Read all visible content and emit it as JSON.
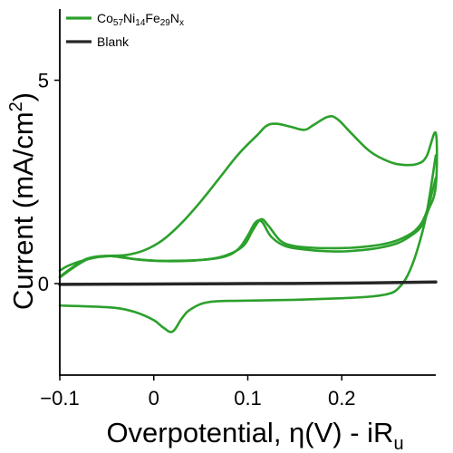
{
  "chart_data": {
    "type": "line",
    "title": "",
    "xlabel": "Overpotential, η(V) - iR",
    "xlabel_sub": "u",
    "ylabel": "Current (mA/cm",
    "ylabel_sup": "2",
    "ylabel_end": ")",
    "xlim": [
      -0.1,
      0.3
    ],
    "ylim": [
      -2.25,
      6.75
    ],
    "x_ticks": [
      {
        "value": -0.1,
        "label": "−0.1"
      },
      {
        "value": 0.0,
        "label": "0"
      },
      {
        "value": 0.1,
        "label": "0.1"
      },
      {
        "value": 0.2,
        "label": "0.2"
      }
    ],
    "y_ticks": [
      {
        "value": 0,
        "label": "0"
      },
      {
        "value": 5,
        "label": "5"
      }
    ],
    "grid": false,
    "legend_position": "top-left",
    "series": [
      {
        "name_parts": [
          {
            "t": "Co",
            "s": "normal"
          },
          {
            "t": "57",
            "s": "sub"
          },
          {
            "t": "Ni",
            "s": "normal"
          },
          {
            "t": "14",
            "s": "sub"
          },
          {
            "t": "Fe",
            "s": "normal"
          },
          {
            "t": "29",
            "s": "sub"
          },
          {
            "t": "N",
            "s": "normal"
          },
          {
            "t": "x",
            "s": "sub"
          }
        ],
        "color": "#2ca02c",
        "paths": [
          {
            "label": "cycle-1-loop",
            "points": [
              [
                -0.1,
                0.32
              ],
              [
                -0.09,
                0.45
              ],
              [
                -0.07,
                0.6
              ],
              [
                -0.05,
                0.68
              ],
              [
                -0.03,
                0.7
              ],
              [
                -0.01,
                0.82
              ],
              [
                0.01,
                1.08
              ],
              [
                0.03,
                1.5
              ],
              [
                0.05,
                2.02
              ],
              [
                0.07,
                2.6
              ],
              [
                0.09,
                3.18
              ],
              [
                0.11,
                3.65
              ],
              [
                0.12,
                3.88
              ],
              [
                0.13,
                3.93
              ],
              [
                0.145,
                3.86
              ],
              [
                0.16,
                3.78
              ],
              [
                0.17,
                3.9
              ],
              [
                0.185,
                4.1
              ],
              [
                0.195,
                4.05
              ],
              [
                0.21,
                3.7
              ],
              [
                0.23,
                3.25
              ],
              [
                0.25,
                3.0
              ],
              [
                0.265,
                2.92
              ],
              [
                0.28,
                2.94
              ],
              [
                0.29,
                3.12
              ],
              [
                0.3,
                3.7
              ],
              [
                0.3,
                2.4
              ],
              [
                0.292,
                1.8
              ],
              [
                0.285,
                1.42
              ],
              [
                0.275,
                1.2
              ],
              [
                0.26,
                1.0
              ],
              [
                0.24,
                0.88
              ],
              [
                0.22,
                0.82
              ],
              [
                0.2,
                0.79
              ],
              [
                0.18,
                0.8
              ],
              [
                0.16,
                0.84
              ],
              [
                0.14,
                0.92
              ],
              [
                0.125,
                1.15
              ],
              [
                0.115,
                1.52
              ],
              [
                0.108,
                1.5
              ],
              [
                0.1,
                1.18
              ],
              [
                0.09,
                0.85
              ],
              [
                0.075,
                0.66
              ],
              [
                0.05,
                0.58
              ],
              [
                0.02,
                0.56
              ],
              [
                0.0,
                0.56
              ],
              [
                -0.02,
                0.6
              ],
              [
                -0.04,
                0.67
              ],
              [
                -0.055,
                0.66
              ],
              [
                -0.07,
                0.6
              ],
              [
                -0.085,
                0.4
              ],
              [
                -0.1,
                0.15
              ]
            ]
          },
          {
            "label": "cycle-2-loop",
            "points": [
              [
                -0.1,
                0.17
              ],
              [
                -0.085,
                0.42
              ],
              [
                -0.07,
                0.62
              ],
              [
                -0.05,
                0.68
              ],
              [
                -0.03,
                0.63
              ],
              [
                -0.01,
                0.58
              ],
              [
                0.02,
                0.55
              ],
              [
                0.05,
                0.58
              ],
              [
                0.075,
                0.68
              ],
              [
                0.095,
                0.92
              ],
              [
                0.105,
                1.3
              ],
              [
                0.114,
                1.58
              ],
              [
                0.122,
                1.42
              ],
              [
                0.135,
                1.05
              ],
              [
                0.15,
                0.92
              ],
              [
                0.17,
                0.88
              ],
              [
                0.19,
                0.87
              ],
              [
                0.21,
                0.88
              ],
              [
                0.23,
                0.92
              ],
              [
                0.25,
                1.0
              ],
              [
                0.265,
                1.12
              ],
              [
                0.28,
                1.35
              ],
              [
                0.29,
                1.75
              ],
              [
                0.3,
                2.6
              ]
            ]
          },
          {
            "label": "cathodic-sweep",
            "points": [
              [
                0.3,
                3.15
              ],
              [
                0.29,
                1.7
              ],
              [
                0.28,
                0.8
              ],
              [
                0.27,
                0.2
              ],
              [
                0.26,
                -0.12
              ],
              [
                0.25,
                -0.25
              ],
              [
                0.23,
                -0.32
              ],
              [
                0.2,
                -0.36
              ],
              [
                0.15,
                -0.4
              ],
              [
                0.1,
                -0.42
              ],
              [
                0.06,
                -0.45
              ],
              [
                0.04,
                -0.62
              ],
              [
                0.03,
                -0.85
              ],
              [
                0.02,
                -1.18
              ],
              [
                0.01,
                -1.08
              ],
              [
                0.0,
                -0.9
              ],
              [
                -0.02,
                -0.7
              ],
              [
                -0.04,
                -0.6
              ],
              [
                -0.07,
                -0.56
              ],
              [
                -0.1,
                -0.54
              ]
            ]
          }
        ]
      },
      {
        "name": "Blank",
        "color": "#262626",
        "paths": [
          {
            "label": "blank-trace",
            "points": [
              [
                -0.1,
                -0.02
              ],
              [
                0.0,
                -0.01
              ],
              [
                0.1,
                0.0
              ],
              [
                0.2,
                0.01
              ],
              [
                0.3,
                0.04
              ]
            ]
          }
        ]
      }
    ]
  }
}
